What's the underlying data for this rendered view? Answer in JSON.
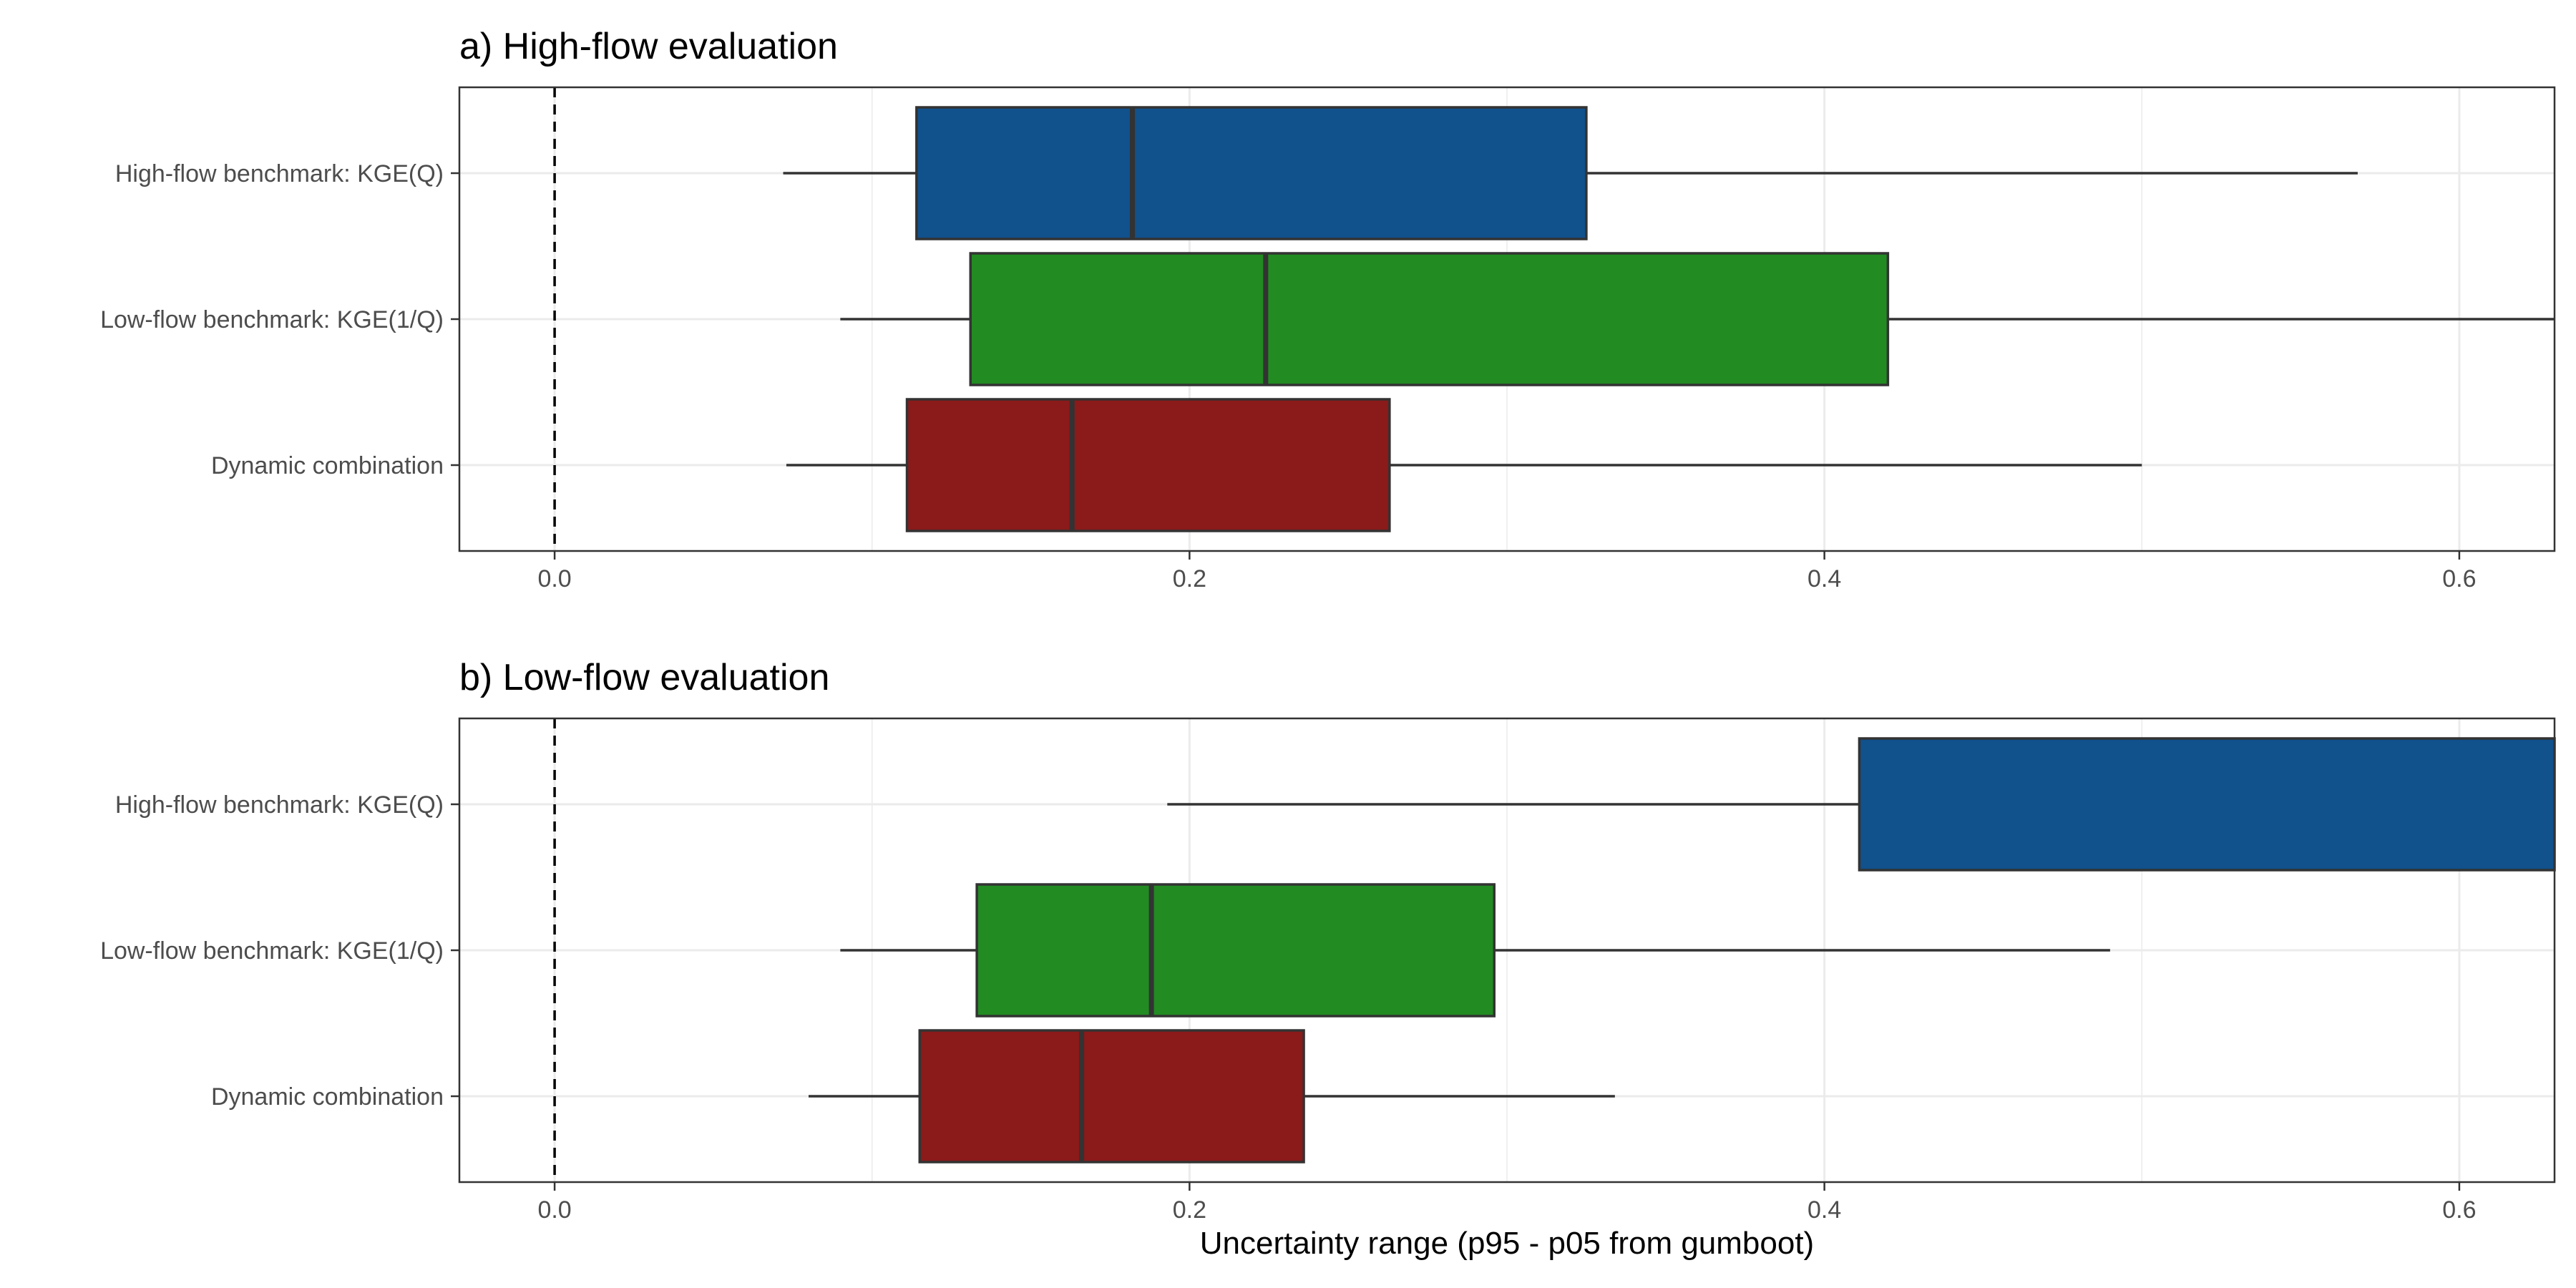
{
  "chart_data": {
    "type": "boxplot",
    "xlabel": "Uncertainty range (p95 - p05 from gumboot)",
    "xlim": [
      -0.03,
      0.63
    ],
    "xticks": [
      0.0,
      0.2,
      0.4,
      0.6
    ],
    "xtick_labels": [
      "0.0",
      "0.2",
      "0.4",
      "0.6"
    ],
    "reference_line": {
      "x": 0.0,
      "style": "dashed"
    },
    "grid": true,
    "categories": [
      "High-flow benchmark: KGE(Q)",
      "Low-flow benchmark: KGE(1/Q)",
      "Dynamic combination"
    ],
    "colors": {
      "High-flow benchmark: KGE(Q)": "#11518c",
      "Low-flow benchmark: KGE(1/Q)": "#228b22",
      "Dynamic combination": "#8b1a1a"
    },
    "panels": [
      {
        "title": "a) High-flow evaluation",
        "boxes": [
          {
            "category": "High-flow benchmark: KGE(Q)",
            "whisker_low": 0.072,
            "q1": 0.114,
            "median": 0.182,
            "q3": 0.325,
            "whisker_high": 0.568
          },
          {
            "category": "Low-flow benchmark: KGE(1/Q)",
            "whisker_low": 0.09,
            "q1": 0.131,
            "median": 0.224,
            "q3": 0.42,
            "whisker_high": 0.63
          },
          {
            "category": "Dynamic combination",
            "whisker_low": 0.073,
            "q1": 0.111,
            "median": 0.163,
            "q3": 0.263,
            "whisker_high": 0.5
          }
        ]
      },
      {
        "title": "b) Low-flow evaluation",
        "boxes": [
          {
            "category": "High-flow benchmark: KGE(Q)",
            "whisker_low": 0.193,
            "q1": 0.411,
            "median": null,
            "q3": 0.63,
            "whisker_high": 0.63
          },
          {
            "category": "Low-flow benchmark: KGE(1/Q)",
            "whisker_low": 0.09,
            "q1": 0.133,
            "median": 0.188,
            "q3": 0.296,
            "whisker_high": 0.49
          },
          {
            "category": "Dynamic combination",
            "whisker_low": 0.08,
            "q1": 0.115,
            "median": 0.166,
            "q3": 0.236,
            "whisker_high": 0.334
          }
        ]
      }
    ]
  }
}
